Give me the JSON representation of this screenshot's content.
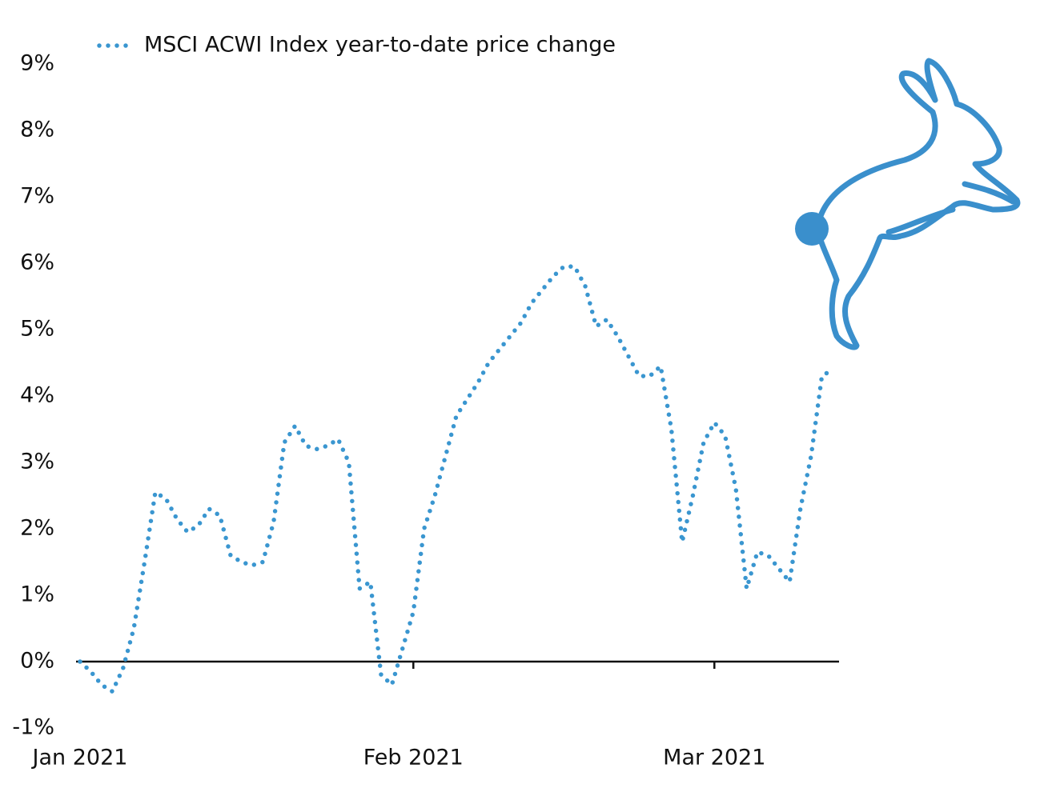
{
  "chart_data": {
    "type": "line",
    "categories": [
      "Jan 2021",
      null,
      null,
      null,
      null,
      null,
      null,
      null,
      null,
      null,
      null,
      null,
      null,
      null,
      null,
      null,
      null,
      null,
      null,
      null,
      null,
      null,
      null,
      null,
      null,
      null,
      null,
      null,
      null,
      null,
      null,
      "Feb 2021",
      null,
      null,
      null,
      null,
      null,
      null,
      null,
      null,
      null,
      null,
      null,
      null,
      null,
      null,
      null,
      null,
      null,
      null,
      null,
      null,
      null,
      null,
      null,
      null,
      null,
      null,
      null,
      "Mar 2021",
      null,
      null,
      null,
      null,
      null,
      null,
      null,
      null,
      null,
      null,
      null
    ],
    "series": [
      {
        "name": "MSCI ACWI Index year-to-date price change",
        "color": "#3a96d0",
        "values": [
          0,
          -0.15,
          -0.35,
          -0.45,
          -0.1,
          0.5,
          1.5,
          2.55,
          2.45,
          2.15,
          1.95,
          2.05,
          2.3,
          2.2,
          1.6,
          1.5,
          1.45,
          1.5,
          2.1,
          3.3,
          3.55,
          3.25,
          3.2,
          3.25,
          3.35,
          3.0,
          1.1,
          1.2,
          -0.2,
          -0.35,
          0.2,
          0.75,
          2.0,
          2.5,
          3.1,
          3.7,
          3.95,
          4.2,
          4.5,
          4.7,
          4.9,
          5.1,
          5.4,
          5.6,
          5.8,
          5.95,
          5.95,
          5.65,
          5.05,
          5.15,
          4.9,
          4.6,
          4.3,
          4.3,
          4.45,
          3.5,
          1.8,
          2.5,
          3.3,
          3.6,
          3.4,
          2.6,
          1.1,
          1.65,
          1.6,
          1.4,
          1.2,
          2.3,
          3.1,
          4.3,
          4.4
        ]
      }
    ],
    "ylim": [
      -1,
      9
    ],
    "yticks": [
      {
        "value": -1,
        "label": "-1%"
      },
      {
        "value": 0,
        "label": "0%"
      },
      {
        "value": 1,
        "label": "1%"
      },
      {
        "value": 2,
        "label": "2%"
      },
      {
        "value": 3,
        "label": "3%"
      },
      {
        "value": 4,
        "label": "4%"
      },
      {
        "value": 5,
        "label": "5%"
      },
      {
        "value": 6,
        "label": "6%"
      },
      {
        "value": 7,
        "label": "7%"
      },
      {
        "value": 8,
        "label": "8%"
      },
      {
        "value": 9,
        "label": "9%"
      }
    ],
    "grid": false,
    "legend": "top"
  }
}
